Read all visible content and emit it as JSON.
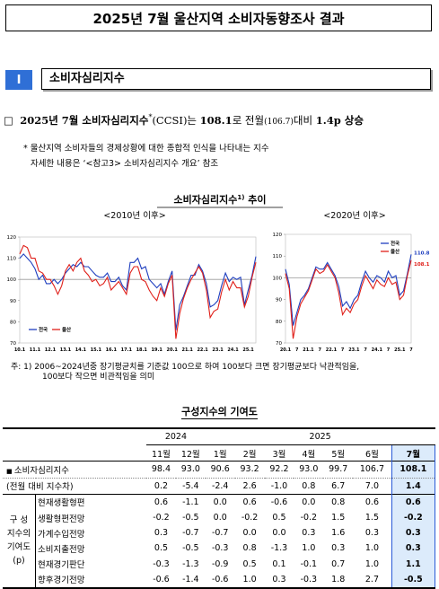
{
  "header": {
    "title": "2025년 7월 울산지역 소비자동향조사 결과"
  },
  "section": {
    "number": "Ⅰ",
    "title": "소비자심리지수"
  },
  "headline": {
    "box": "□",
    "parts": [
      "2025년 7월 소비자심리지수",
      "*",
      "(CCSI)는 ",
      "108.1",
      "로 전월",
      "(106.7)",
      "대비 ",
      "1.4p",
      " 상승"
    ]
  },
  "footnote": {
    "mark": "*",
    "lines": [
      "울산지역 소비자들의 경제상황에 대한 종합적 인식을 나타내는 지수",
      "자세한 내용은 ‘<참고3> 소비자심리지수 개요’ 참조"
    ]
  },
  "charts_title": {
    "text": "소비자심리지수",
    "sup": "1)",
    "suffix": " 추이"
  },
  "chart_data": [
    {
      "type": "line",
      "subtitle": "<2010년 이후>",
      "categories": [
        "10.1",
        null,
        null,
        null,
        "11.1",
        null,
        null,
        null,
        "12.1",
        null,
        null,
        null,
        "13.1",
        null,
        null,
        null,
        "14.1",
        null,
        null,
        null,
        "15.1",
        null,
        null,
        null,
        "16.1",
        null,
        null,
        null,
        "17.1",
        null,
        null,
        null,
        "18.1",
        null,
        null,
        null,
        "19.1",
        null,
        null,
        null,
        "20.1",
        null,
        null,
        null,
        "21.1",
        null,
        null,
        null,
        "22.1",
        null,
        null,
        null,
        "23.1",
        null,
        null,
        null,
        "24.1",
        null,
        null,
        null,
        "25.1",
        null,
        null
      ],
      "series": [
        {
          "name": "전국",
          "color": "#1f3fbf",
          "values": [
            110,
            112,
            110,
            108,
            105,
            100,
            102,
            98,
            98,
            100,
            98,
            100,
            103,
            105,
            107,
            106,
            108,
            106,
            106,
            104,
            102,
            101,
            101,
            103,
            99,
            99,
            101,
            97,
            95,
            108,
            108,
            110,
            105,
            106,
            100,
            98,
            96,
            98,
            93,
            99,
            104,
            76,
            88,
            92,
            97,
            102,
            102,
            107,
            104,
            98,
            87,
            88,
            90,
            97,
            103,
            99,
            101,
            100,
            101,
            88,
            95,
            102,
            110.8
          ]
        },
        {
          "name": "울산",
          "color": "#e0201a",
          "values": [
            112,
            116,
            115,
            110,
            110,
            104,
            103,
            100,
            100,
            97,
            93,
            97,
            104,
            107,
            104,
            108,
            110,
            104,
            102,
            99,
            100,
            97,
            98,
            101,
            95,
            97,
            99,
            96,
            93,
            103,
            106,
            106,
            100,
            99,
            95,
            92,
            90,
            96,
            92,
            98,
            102,
            72,
            84,
            91,
            96,
            100,
            103,
            106,
            103,
            95,
            82,
            85,
            86,
            94,
            100,
            95,
            99,
            96,
            96,
            87,
            92,
            101,
            108.1
          ]
        }
      ],
      "ylim": [
        70,
        120
      ],
      "yticks": [
        70,
        80,
        90,
        100,
        110,
        120
      ],
      "hline": 100,
      "legend": "lower-left",
      "label_last": false
    },
    {
      "type": "line",
      "subtitle": "<2020년 이후>",
      "categories": [
        "20.1",
        null,
        null,
        "7",
        null,
        null,
        "21.1",
        null,
        null,
        "7",
        null,
        null,
        "22.1",
        null,
        null,
        "7",
        null,
        null,
        "23.1",
        null,
        null,
        "7",
        null,
        null,
        "24.1",
        null,
        null,
        "7",
        null,
        null,
        "25.1",
        null,
        null,
        "7"
      ],
      "series": [
        {
          "name": "전국",
          "color": "#1f3fbf",
          "values": [
            104,
            97,
            78,
            84,
            90,
            92,
            95,
            100,
            105,
            104,
            104,
            107,
            104,
            101,
            96,
            87,
            89,
            86,
            90,
            92,
            98,
            103,
            100,
            98,
            101,
            100,
            98,
            103,
            100,
            101,
            92,
            94,
            102,
            110.8
          ]
        },
        {
          "name": "울산",
          "color": "#e0201a",
          "values": [
            102,
            95,
            72,
            82,
            88,
            91,
            94,
            99,
            104,
            102,
            103,
            106,
            103,
            100,
            93,
            83,
            86,
            84,
            88,
            90,
            96,
            101,
            98,
            95,
            99,
            97,
            96,
            100,
            97,
            98,
            90,
            92,
            101,
            108.1
          ]
        }
      ],
      "ylim": [
        70,
        120
      ],
      "yticks": [
        70,
        80,
        90,
        100,
        110,
        120
      ],
      "hline": 100,
      "legend": "upper-right",
      "label_last": true
    }
  ],
  "chart_note": [
    "주: 1) 2006~2024년중 장기평균치를 기준값 100으로 하여 100보다 크면 장기평균보다 낙관적임을,",
    "100보다 작으면 비관적임을 의미"
  ],
  "table": {
    "title": "구성지수의 기여도",
    "years": [
      {
        "label": "2024",
        "span": 2
      },
      {
        "label": "2025",
        "span": 7
      }
    ],
    "months": [
      "11월",
      "12월",
      "1월",
      "2월",
      "3월",
      "4월",
      "5월",
      "6월",
      "7월"
    ],
    "group_label": [
      "구  성",
      "지수의",
      "기여도",
      "(p)"
    ],
    "rows": [
      {
        "label": "소비자심리지수",
        "values": [
          "98.4",
          "93.0",
          "90.6",
          "93.2",
          "92.2",
          "93.0",
          "99.7",
          "106.7",
          "108.1"
        ]
      },
      {
        "label": "(전월 대비 지수차)",
        "values": [
          "0.2",
          "-5.4",
          "-2.4",
          "2.6",
          "-1.0",
          "0.8",
          "6.7",
          "7.0",
          "1.4"
        ]
      },
      {
        "label": "현재생활형편",
        "values": [
          "0.6",
          "-1.1",
          "0.0",
          "0.6",
          "-0.6",
          "0.0",
          "0.8",
          "0.6",
          "0.6"
        ]
      },
      {
        "label": "생활형편전망",
        "values": [
          "-0.2",
          "-0.5",
          "0.0",
          "-0.2",
          "0.5",
          "-0.2",
          "1.5",
          "1.5",
          "-0.2"
        ]
      },
      {
        "label": "가계수입전망",
        "values": [
          "0.3",
          "-0.7",
          "-0.7",
          "0.0",
          "0.0",
          "0.3",
          "1.6",
          "0.3",
          "0.3"
        ]
      },
      {
        "label": "소비지출전망",
        "values": [
          "0.5",
          "-0.5",
          "-0.3",
          "0.8",
          "-1.3",
          "1.0",
          "0.3",
          "1.0",
          "0.3"
        ]
      },
      {
        "label": "현재경기판단",
        "values": [
          "-0.3",
          "-1.3",
          "-0.9",
          "0.5",
          "0.1",
          "-0.1",
          "0.7",
          "1.0",
          "1.1"
        ]
      },
      {
        "label": "향후경기전망",
        "values": [
          "-0.6",
          "-1.4",
          "-0.6",
          "1.0",
          "0.3",
          "-0.3",
          "1.8",
          "2.7",
          "-0.5"
        ]
      }
    ]
  }
}
